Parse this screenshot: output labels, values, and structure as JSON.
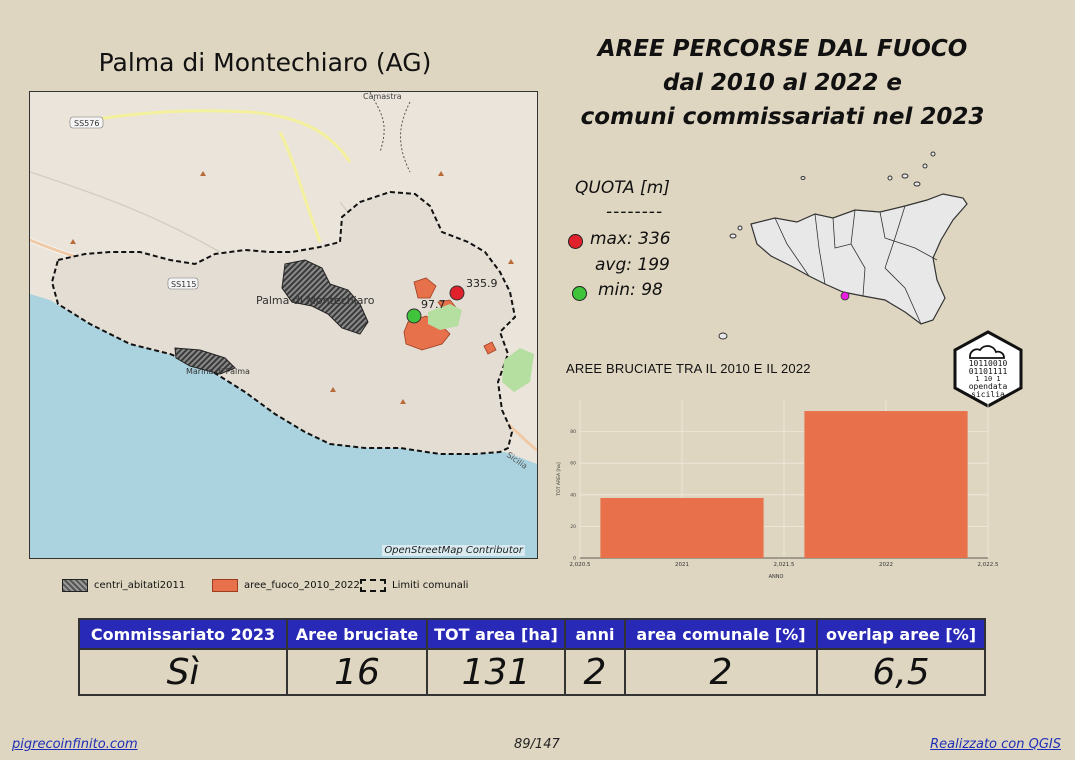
{
  "municipality_title": "Palma di Montechiaro (AG)",
  "main_title": [
    "AREE PERCORSE DAL FUOCO",
    "dal 2010 al 2022 e",
    "comuni commissariati nel 2023"
  ],
  "map": {
    "labels": {
      "camastra": "Camastra",
      "ss576": "SS576",
      "ss115": "SS115",
      "town": "Palma di Montechiaro",
      "marina": "Marina di Palma",
      "sicilia": "Sicilia"
    },
    "points": {
      "max_label": "335.9",
      "min_label": "97.7"
    },
    "attribution": "OpenStreetMap Contributor"
  },
  "legend": {
    "centri": "centri_abitati2011",
    "fuoco": "aree_fuoco_2010_2022",
    "limiti": "Limiti comunali"
  },
  "quota": {
    "title": "QUOTA [m]",
    "dashes": "--------",
    "max": "max: 336",
    "avg": "avg: 199",
    "min": "min: 98"
  },
  "colors": {
    "max": "#e0202a",
    "min": "#3fc43c",
    "fire": "#e6714a",
    "header": "#2929b8"
  },
  "chart_data": {
    "type": "bar",
    "title": "AREE BRUCIATE TRA IL 2010 E IL 2022",
    "categories": [
      "2021",
      "2022"
    ],
    "x_positions": [
      2021,
      2022
    ],
    "values": [
      38,
      93
    ],
    "xlabel": "ANNO",
    "ylabel": "TOT AREA [ha]",
    "xlim": [
      2020.5,
      2022.5
    ],
    "x_tick_labels": [
      "2,020.5",
      "2021",
      "2,021.5",
      "2022",
      "2,022.5"
    ],
    "x_tick_values": [
      2020.5,
      2021,
      2021.5,
      2022,
      2022.5
    ],
    "ylim": [
      0,
      100
    ],
    "y_tick_labels": [
      "0",
      "20",
      "40",
      "60",
      "80"
    ],
    "y_tick_values": [
      0,
      20,
      40,
      60,
      80
    ],
    "color": "#e8704b",
    "grid": true
  },
  "table": {
    "headers": [
      "Commissariato 2023",
      "Aree bruciate",
      "TOT area [ha]",
      "anni",
      "area comunale [%]",
      "overlap aree [%]"
    ],
    "values": [
      "Sì",
      "16",
      "131",
      "2",
      "2",
      "6,5"
    ]
  },
  "footer": {
    "left": "pigrecoinfinito.com",
    "page": "89/147",
    "right": "Realizzato con QGIS"
  }
}
